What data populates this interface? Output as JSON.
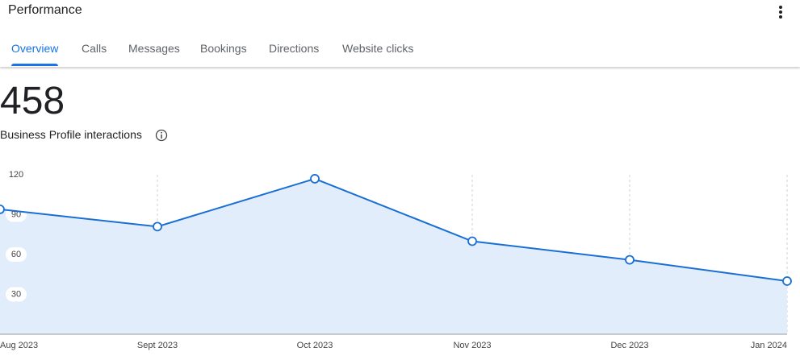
{
  "header": {
    "title": "Performance"
  },
  "tabs": [
    "Overview",
    "Calls",
    "Messages",
    "Bookings",
    "Directions",
    "Website clicks"
  ],
  "active_tab": 0,
  "metric": {
    "value": 458,
    "label": "Business Profile interactions"
  },
  "chart_data": {
    "type": "line",
    "categories": [
      "Aug 2023",
      "Sept 2023",
      "Oct 2023",
      "Nov 2023",
      "Dec 2023",
      "Jan 2024"
    ],
    "series": [
      {
        "name": "Business Profile interactions",
        "color": "#1a6fd4",
        "values": [
          94,
          81,
          117,
          70,
          56,
          40
        ]
      }
    ],
    "ylim": [
      0,
      120
    ],
    "yticks": [
      30,
      60,
      90,
      120
    ],
    "grid": true
  }
}
